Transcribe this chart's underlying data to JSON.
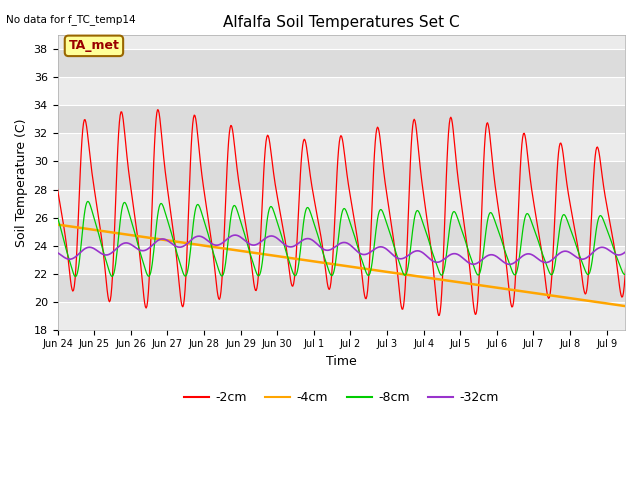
{
  "title": "Alfalfa Soil Temperatures Set C",
  "xlabel": "Time",
  "ylabel": "Soil Temperature (C)",
  "top_left_text": "No data for f_TC_temp14",
  "annotation_box_text": "TA_met",
  "annotation_box_color": "#FFFF99",
  "annotation_box_edge_color": "#996600",
  "annotation_text_color": "#990000",
  "ylim": [
    18,
    39
  ],
  "yticks": [
    18,
    20,
    22,
    24,
    26,
    28,
    30,
    32,
    34,
    36,
    38
  ],
  "bg_color_dark": "#DCDCDC",
  "bg_color_light": "#EBEBEB",
  "grid_color": "#FFFFFF",
  "line_colors": {
    "2cm": "#FF0000",
    "4cm": "#FFA500",
    "8cm": "#00CC00",
    "32cm": "#9933CC"
  },
  "legend_labels": [
    "-2cm",
    "-4cm",
    "-8cm",
    "-32cm"
  ],
  "legend_colors": [
    "#FF0000",
    "#FFA500",
    "#00CC00",
    "#9933CC"
  ],
  "x_tick_labels": [
    "Jun 24",
    "Jun 25",
    "Jun 26",
    "Jun 27",
    "Jun 28",
    "Jun 29",
    "Jun 30",
    "Jul 1",
    "Jul 2",
    "Jul 3",
    "Jul 4",
    "Jul 5",
    "Jul 6",
    "Jul 7",
    "Jul 8",
    "Jul 9"
  ]
}
